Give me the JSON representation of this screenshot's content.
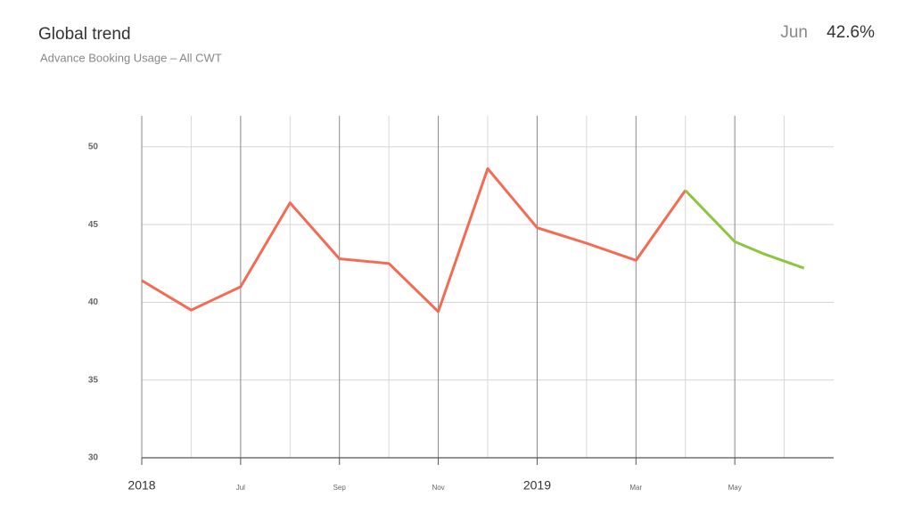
{
  "chart_data": {
    "type": "line",
    "title": "Global trend",
    "subtitle": "Advance Booking Usage – All CWT",
    "headline_label": "Jun",
    "headline_value": "42.6%",
    "series": [
      {
        "color": "#f26b52",
        "x": [
          5,
          6,
          7,
          8,
          9,
          10,
          11,
          12,
          13,
          14,
          15,
          16
        ],
        "values": [
          41.4,
          39.5,
          41.0,
          46.4,
          42.8,
          42.5,
          39.4,
          48.6,
          44.8,
          43.8,
          42.7,
          47.2
        ]
      },
      {
        "color": "#8cc63f",
        "x": [
          16,
          17,
          17.6,
          18.4
        ],
        "values": [
          47.2,
          43.9,
          43.1,
          42.2
        ]
      }
    ],
    "xlim": [
      5,
      19
    ],
    "xticks": [
      {
        "value": 5,
        "label": "2018"
      },
      {
        "value": 7,
        "label": "Jul"
      },
      {
        "value": 9,
        "label": "Sep"
      },
      {
        "value": 11,
        "label": "Nov"
      },
      {
        "value": 13,
        "label": "2019"
      },
      {
        "value": 15,
        "label": "Mar"
      },
      {
        "value": 17,
        "label": "May"
      }
    ],
    "xminor_ticks": [
      6,
      8,
      10,
      12,
      14,
      16,
      18
    ],
    "ylim": [
      30,
      52
    ],
    "yticks": [
      30,
      35,
      40,
      45,
      50
    ],
    "grid": true
  }
}
